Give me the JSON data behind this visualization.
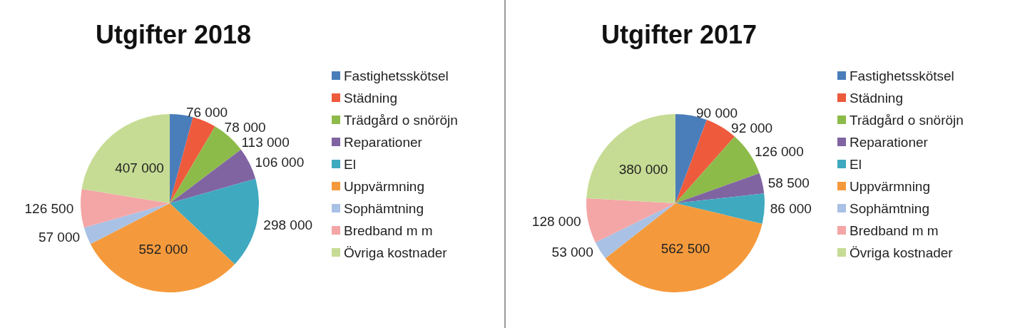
{
  "chart_data": [
    {
      "type": "pie",
      "title": "Utgifter 2018",
      "categories": [
        "Fastighetsskötsel",
        "Städning",
        "Trädgård o snöröjn",
        "Reparationer",
        "El",
        "Uppvärmning",
        "Sophämtning",
        "Bredband m m",
        "Övriga kostnader"
      ],
      "values": [
        76000,
        78000,
        113000,
        106000,
        298000,
        552000,
        57000,
        126500,
        407000
      ],
      "colors": [
        "#4a7ebb",
        "#ee5a3c",
        "#8dbb4a",
        "#8064a2",
        "#3fa9bf",
        "#f59a3c",
        "#a9c1e4",
        "#f4a6a6",
        "#c6dc94"
      ],
      "data_labels": true,
      "legend": "right"
    },
    {
      "type": "pie",
      "title": "Utgifter 2017",
      "categories": [
        "Fastighetsskötsel",
        "Städning",
        "Trädgård o snöröjn",
        "Reparationer",
        "El",
        "Uppvärmning",
        "Sophämtning",
        "Bredband m m",
        "Övriga kostnader"
      ],
      "values": [
        90000,
        92000,
        126000,
        58500,
        86000,
        562500,
        53000,
        128000,
        380000
      ],
      "colors": [
        "#4a7ebb",
        "#ee5a3c",
        "#8dbb4a",
        "#8064a2",
        "#3fa9bf",
        "#f59a3c",
        "#a9c1e4",
        "#f4a6a6",
        "#c6dc94"
      ],
      "data_labels": true,
      "legend": "right"
    }
  ]
}
